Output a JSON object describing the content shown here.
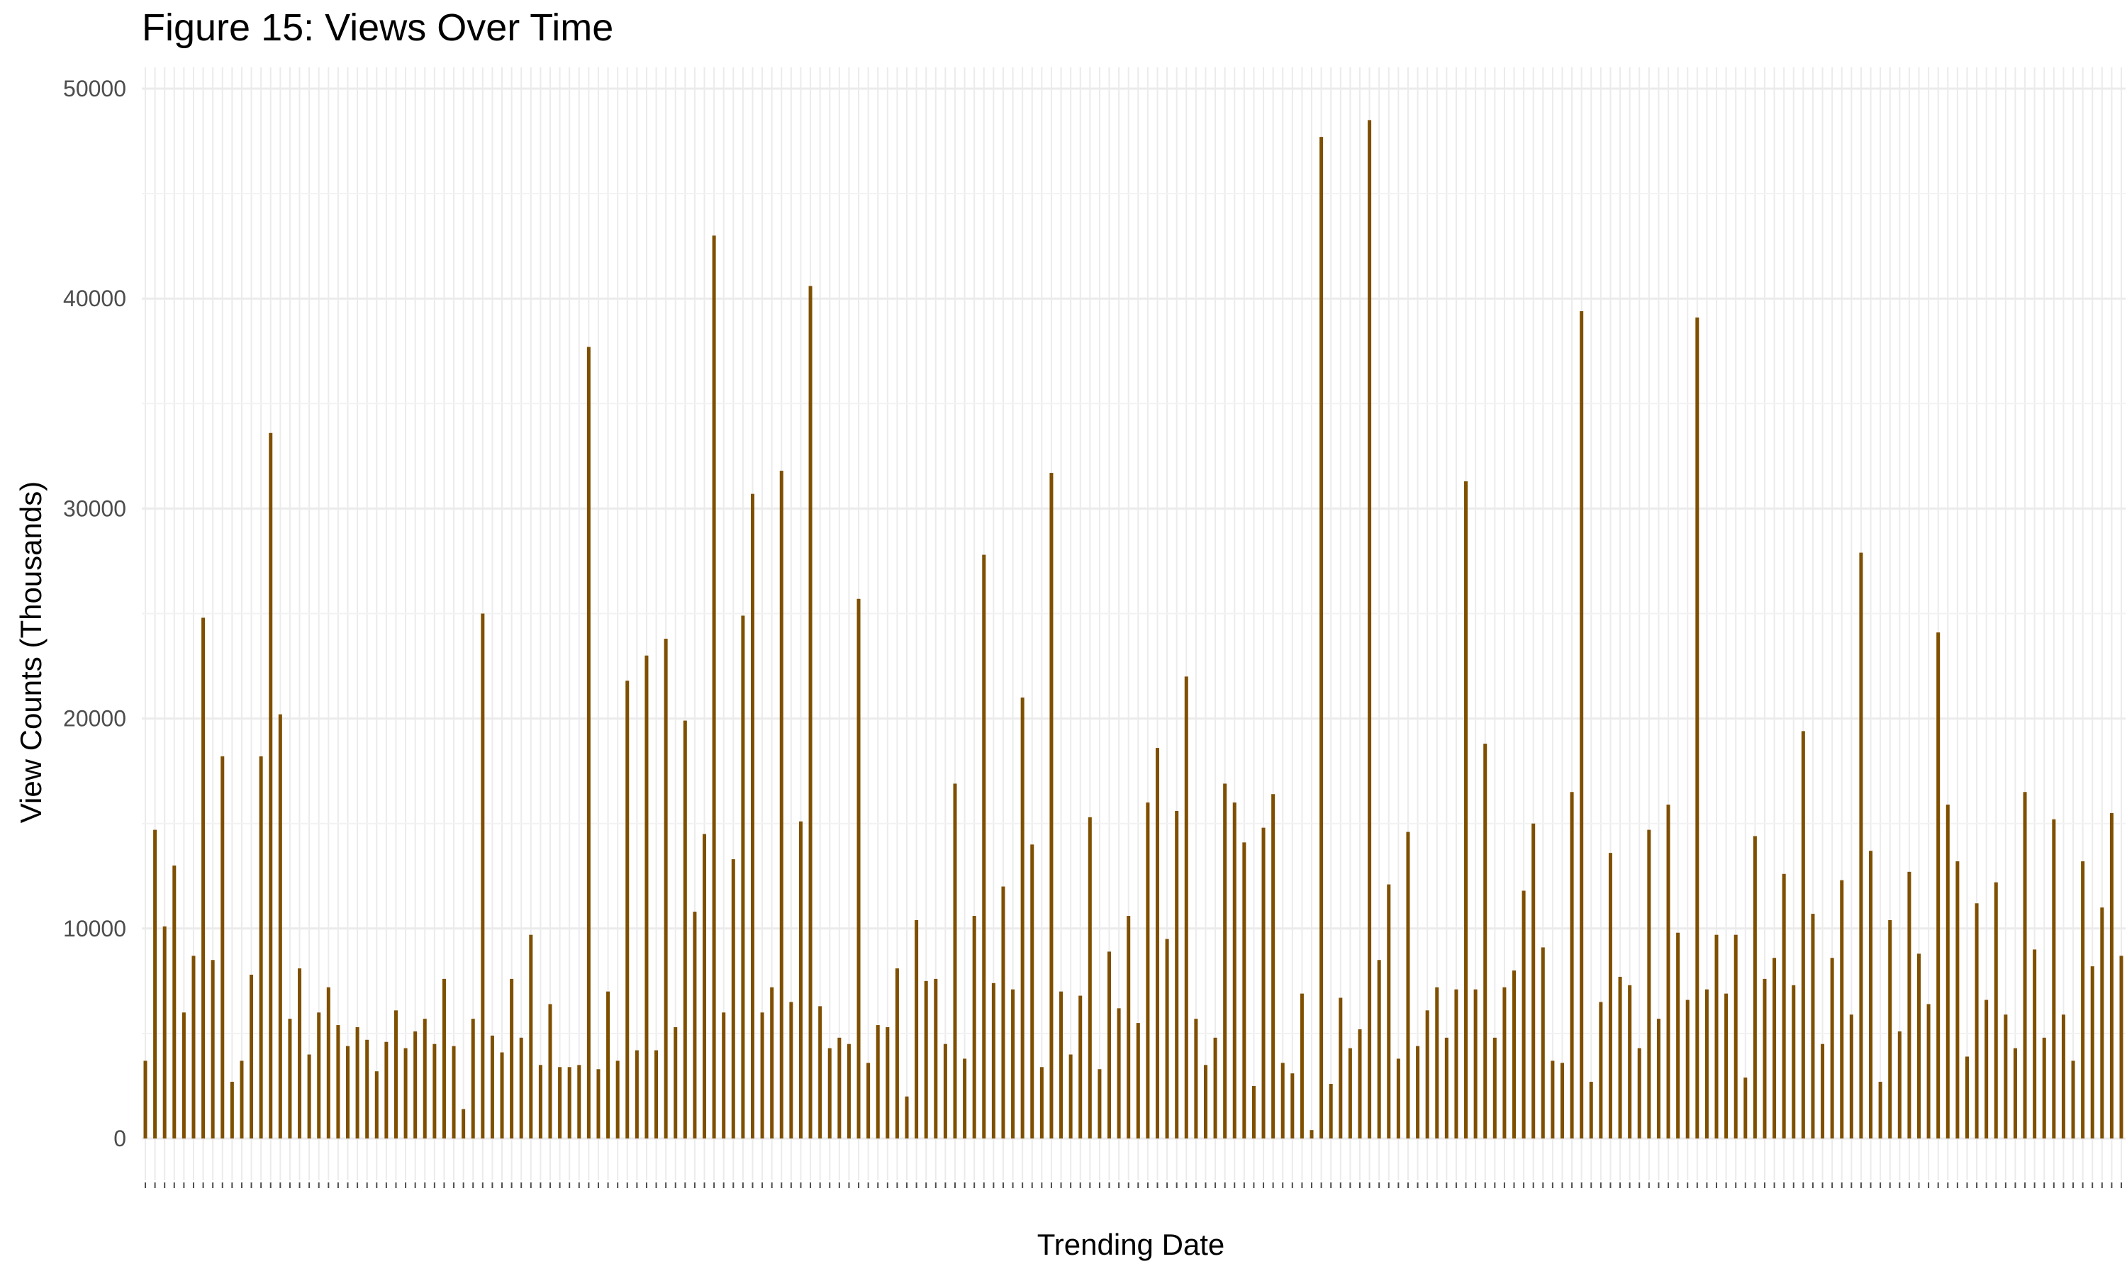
{
  "chart_data": {
    "type": "bar",
    "title": "Figure 15: Views Over Time",
    "xlabel": "Trending Date",
    "ylabel": "View Counts (Thousands)",
    "ylim": [
      0,
      50000
    ],
    "yticks": [
      0,
      10000,
      20000,
      30000,
      40000,
      50000
    ],
    "grid": true,
    "legend": "none",
    "bar_color": "#7f4f00",
    "x_tick_labels_legible": false,
    "values": [
      3700,
      14700,
      10100,
      13000,
      6000,
      8700,
      24800,
      8500,
      18200,
      2700,
      3700,
      7800,
      18200,
      33600,
      20200,
      5700,
      8100,
      4000,
      6000,
      7200,
      5400,
      4400,
      5300,
      4700,
      3200,
      4600,
      6100,
      4300,
      5100,
      5700,
      4500,
      7600,
      4400,
      1400,
      5700,
      25000,
      4900,
      4100,
      7600,
      4800,
      9700,
      3500,
      6400,
      3400,
      3400,
      3500,
      37700,
      3300,
      7000,
      3700,
      21800,
      4200,
      23000,
      4200,
      23800,
      5300,
      19900,
      10800,
      14500,
      43000,
      6000,
      13300,
      24900,
      30700,
      6000,
      7200,
      31800,
      6500,
      15100,
      40600,
      6300,
      4300,
      4800,
      4500,
      25700,
      3600,
      5400,
      5300,
      8100,
      2000,
      10400,
      7500,
      7600,
      4500,
      16900,
      3800,
      10600,
      27800,
      7400,
      12000,
      7100,
      21000,
      14000,
      3400,
      31700,
      7000,
      4000,
      6800,
      15300,
      3300,
      8900,
      6200,
      10600,
      5500,
      16000,
      18600,
      9500,
      15600,
      22000,
      5700,
      3500,
      4800,
      16900,
      16000,
      14100,
      2500,
      14800,
      16400,
      3600,
      3100,
      6900,
      400,
      47700,
      2600,
      6700,
      4300,
      5200,
      48500,
      8500,
      12100,
      3800,
      14600,
      4400,
      6100,
      7200,
      4800,
      7100,
      31300,
      7100,
      18800,
      4800,
      7200,
      8000,
      11800,
      15000,
      9100,
      3700,
      3600,
      16500,
      39400,
      2700,
      6500,
      13600,
      7700,
      7300,
      4300,
      14700,
      5700,
      15900,
      9800,
      6600,
      39100,
      7100,
      9700,
      6900,
      9700,
      2900,
      14400,
      7600,
      8600,
      12600,
      7300,
      19400,
      10700,
      4500,
      8600,
      12300,
      5900,
      27900,
      13700,
      2700,
      10400,
      5100,
      12700,
      8800,
      6400,
      24100,
      15900,
      13200,
      3900,
      11200,
      6600,
      12200,
      5900,
      4300,
      16500,
      9000,
      4800,
      15200,
      5900,
      3700,
      13200,
      8200,
      11000,
      15500,
      8700
    ]
  }
}
